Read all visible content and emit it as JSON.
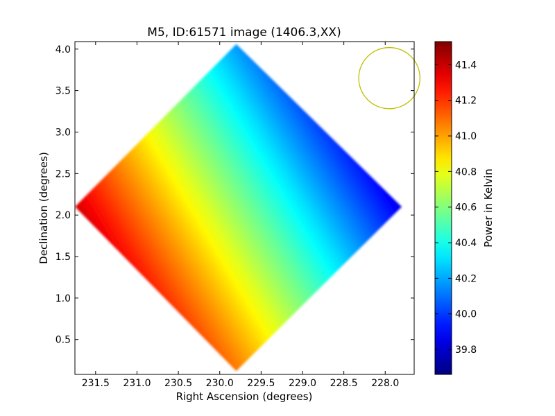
{
  "chart_data": {
    "type": "heatmap",
    "title": "M5, ID:61571 image (1406.3,XX)",
    "xlabel": "Right Ascension (degrees)",
    "ylabel": "Declination (degrees)",
    "xlim": [
      231.75,
      227.65
    ],
    "ylim": [
      0.08,
      4.09
    ],
    "x_inverted": true,
    "x_ticks": [
      231.5,
      231.0,
      230.5,
      230.0,
      229.5,
      229.0,
      228.5,
      228.0
    ],
    "x_tick_labels": [
      "231.5",
      "231.0",
      "230.5",
      "230.0",
      "229.5",
      "229.0",
      "228.5",
      "228.0"
    ],
    "y_ticks": [
      0.5,
      1.0,
      1.5,
      2.0,
      2.5,
      3.0,
      3.5,
      4.0
    ],
    "y_tick_labels": [
      "0.5",
      "1.0",
      "1.5",
      "2.0",
      "2.5",
      "3.0",
      "3.5",
      "4.0"
    ],
    "colormap": "jet",
    "colorbar": {
      "label": "Power in Kelvin",
      "range": [
        39.66,
        41.53
      ],
      "ticks": [
        39.8,
        40.0,
        40.2,
        40.4,
        40.6,
        40.8,
        41.0,
        41.2,
        41.4
      ],
      "tick_labels": [
        "39.8",
        "40.0",
        "40.2",
        "40.4",
        "40.6",
        "40.8",
        "41.0",
        "41.2",
        "41.4"
      ]
    },
    "field_vertices": [
      {
        "ra": 229.8,
        "dec": 4.06
      },
      {
        "ra": 227.8,
        "dec": 2.1
      },
      {
        "ra": 229.8,
        "dec": 0.12
      },
      {
        "ra": 231.75,
        "dec": 2.1
      }
    ],
    "gradient": {
      "start": {
        "ra": 231.4,
        "dec": 1.5,
        "value": 41.38
      },
      "end": {
        "ra": 228.3,
        "dec": 3.35,
        "value": 39.76
      }
    },
    "beam": {
      "ra_center": 227.95,
      "dec_center": 3.65,
      "radius_deg": 0.37,
      "color": "#bfbf00"
    },
    "grid": false,
    "legend": "none"
  }
}
